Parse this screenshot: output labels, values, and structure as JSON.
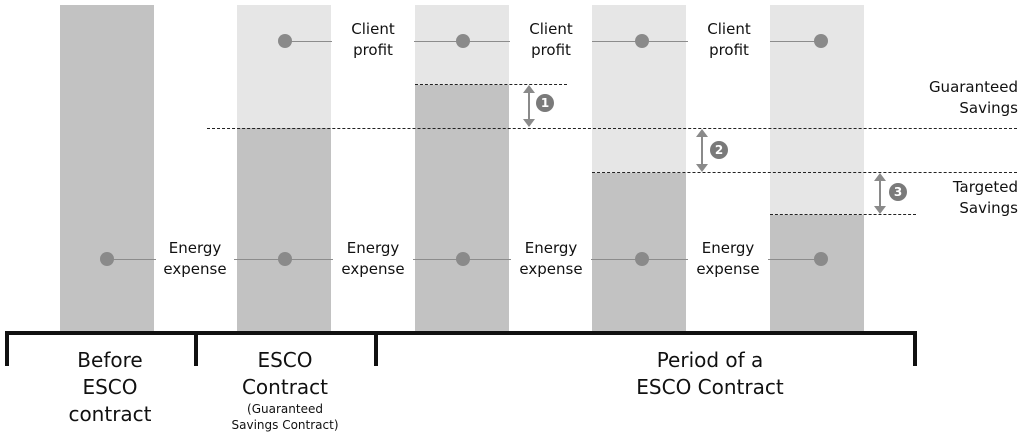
{
  "labels": {
    "client_profit": [
      "Client\nprofit",
      "Client\nprofit",
      "Client\nprofit"
    ],
    "energy_expense": [
      "Energy\nexpense",
      "Energy\nexpense",
      "Energy\nexpense",
      "Energy\nexpense"
    ],
    "guaranteed_savings": "Guaranteed\nSavings",
    "targeted_savings": "Targeted\nSavings"
  },
  "markers": [
    "1",
    "2",
    "3"
  ],
  "timeline": {
    "before": "Before\nESCO\ncontract",
    "esco_contract": "ESCO\nContract",
    "esco_contract_sub": "(Guaranteed\nSavings Contract)",
    "period": "Period of a\nESCO Contract"
  },
  "colors": {
    "dark_bar": "#c2c2c2",
    "light_bar": "#e6e6e6",
    "dot": "#8a8a8a",
    "line": "#8c8c8c"
  }
}
